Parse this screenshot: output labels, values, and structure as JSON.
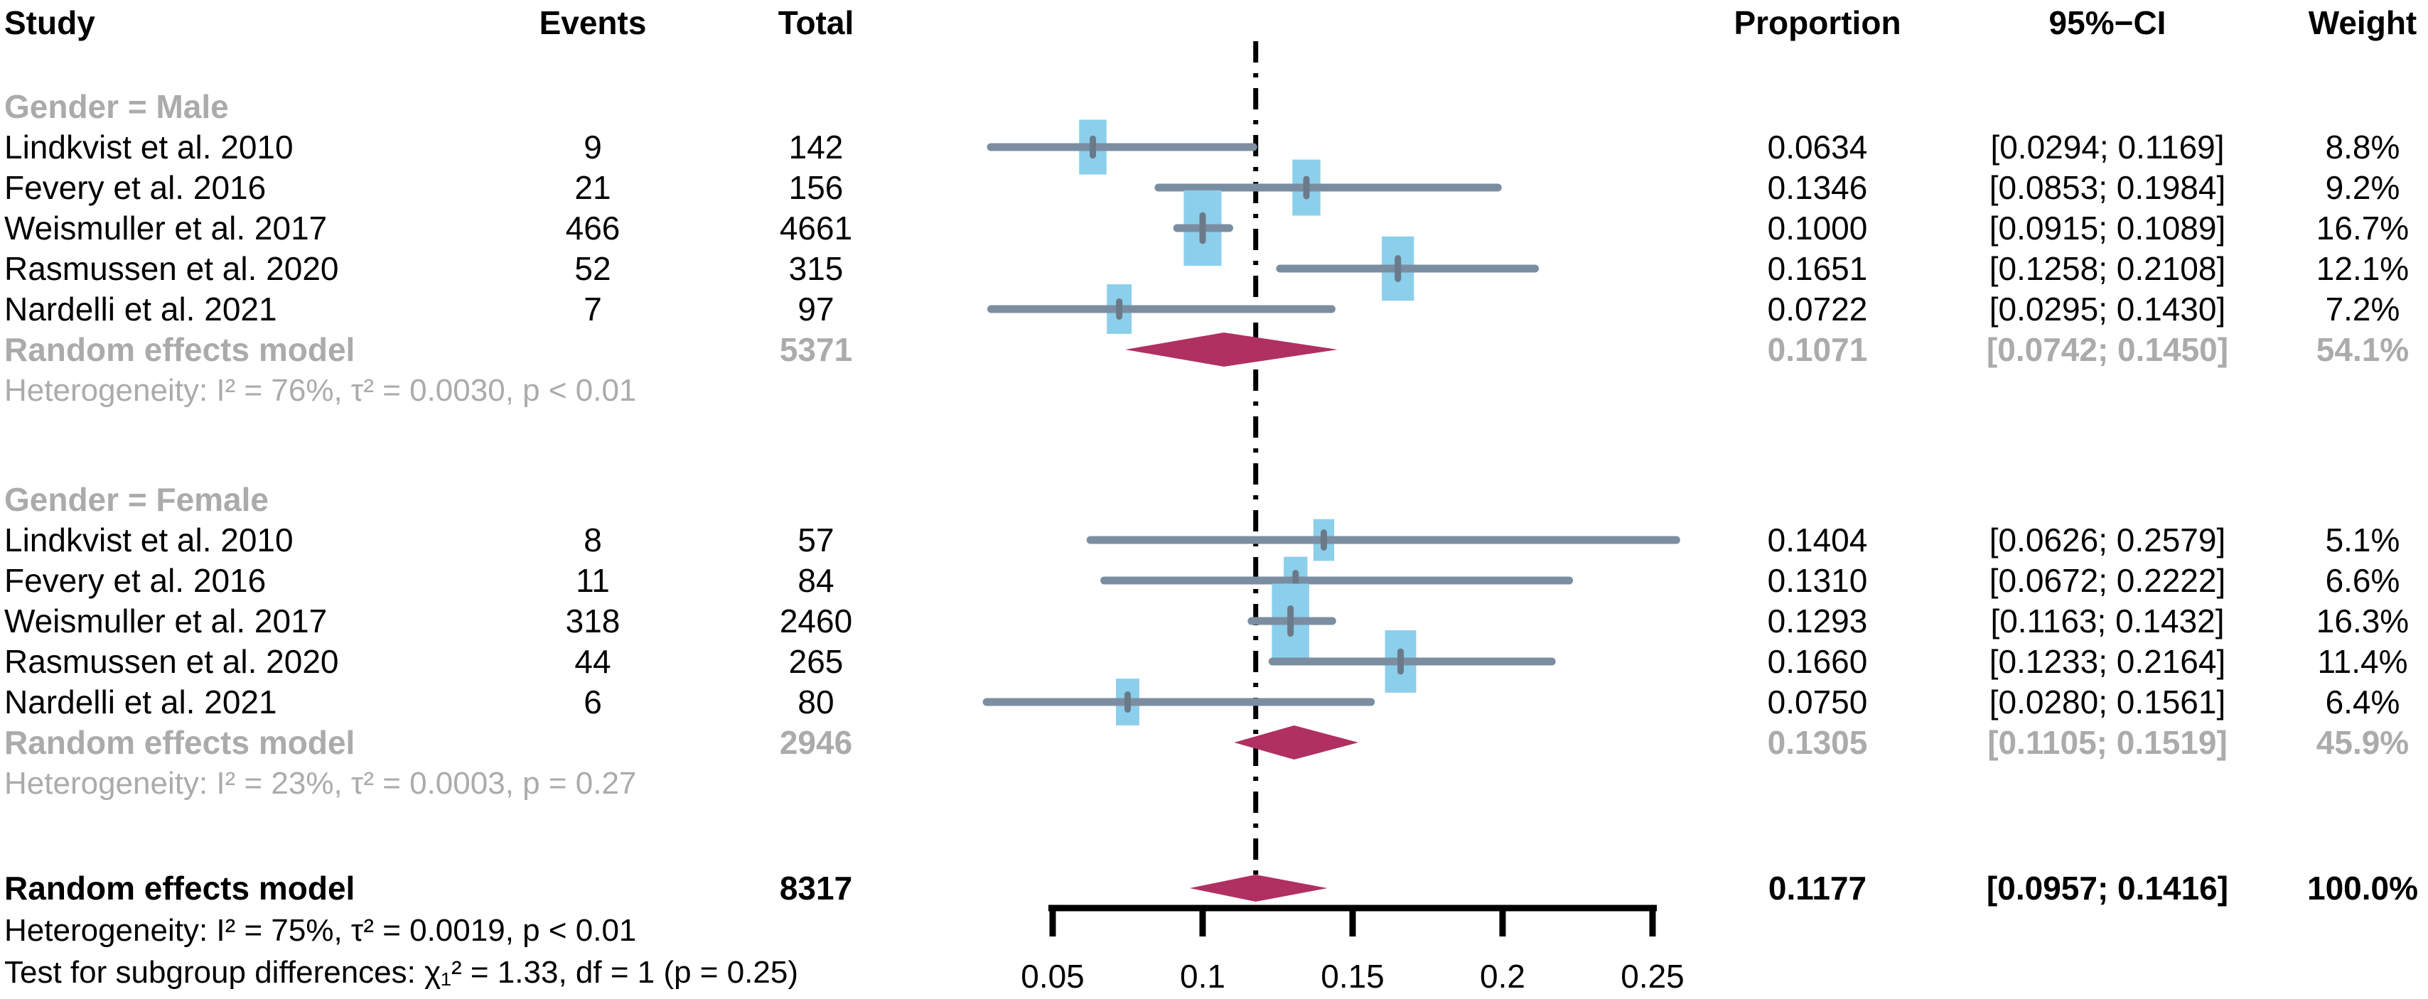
{
  "columns": {
    "study": "Study",
    "events": "Events",
    "total": "Total",
    "proportion": "Proportion",
    "ci": "95%−CI",
    "weight": "Weight"
  },
  "colors": {
    "square": "#8ccfeb",
    "ci_line": "#7b8ea1",
    "point_tick": "#6b7a89",
    "diamond": "#b03062",
    "reference_line": "#000000",
    "subdued_text": "#ababab",
    "text": "#000000"
  },
  "chart_data": {
    "type": "forest",
    "title": "",
    "xlabel": "",
    "x_axis": {
      "xlim": [
        0.05,
        0.25
      ],
      "ticks": [
        0.05,
        0.1,
        0.15,
        0.2,
        0.25
      ],
      "tick_labels": [
        "0.05",
        "0.1",
        "0.15",
        "0.2",
        "0.25"
      ],
      "reference_line": 0.1177
    },
    "groups": [
      {
        "label": "Gender = Male",
        "studies": [
          {
            "study": "Lindkvist et al. 2010",
            "events": "9",
            "total": "142",
            "proportion": 0.0634,
            "ci_low": 0.0294,
            "ci_high": 0.1169,
            "proportion_label": "0.0634",
            "ci_label": "[0.0294; 0.1169]",
            "weight": 8.8,
            "weight_label": "8.8%"
          },
          {
            "study": "Fevery et al. 2016",
            "events": "21",
            "total": "156",
            "proportion": 0.1346,
            "ci_low": 0.0853,
            "ci_high": 0.1984,
            "proportion_label": "0.1346",
            "ci_label": "[0.0853; 0.1984]",
            "weight": 9.2,
            "weight_label": "9.2%"
          },
          {
            "study": "Weismuller et al. 2017",
            "events": "466",
            "total": "4661",
            "proportion": 0.1,
            "ci_low": 0.0915,
            "ci_high": 0.1089,
            "proportion_label": "0.1000",
            "ci_label": "[0.0915; 0.1089]",
            "weight": 16.7,
            "weight_label": "16.7%"
          },
          {
            "study": "Rasmussen et al. 2020",
            "events": "52",
            "total": "315",
            "proportion": 0.1651,
            "ci_low": 0.1258,
            "ci_high": 0.2108,
            "proportion_label": "0.1651",
            "ci_label": "[0.1258; 0.2108]",
            "weight": 12.1,
            "weight_label": "12.1%"
          },
          {
            "study": "Nardelli et al. 2021",
            "events": "7",
            "total": "97",
            "proportion": 0.0722,
            "ci_low": 0.0295,
            "ci_high": 0.143,
            "proportion_label": "0.0722",
            "ci_label": "[0.0295; 0.1430]",
            "weight": 7.2,
            "weight_label": "7.2%"
          }
        ],
        "summary": {
          "label": "Random effects model",
          "total": "5371",
          "proportion": 0.1071,
          "ci_low": 0.0742,
          "ci_high": 0.145,
          "proportion_label": "0.1071",
          "ci_label": "[0.0742; 0.1450]",
          "weight_label": "54.1%"
        },
        "heterogeneity": "Heterogeneity: I² = 76%, τ² = 0.0030, p < 0.01"
      },
      {
        "label": "Gender = Female",
        "studies": [
          {
            "study": "Lindkvist et al. 2010",
            "events": "8",
            "total": "57",
            "proportion": 0.1404,
            "ci_low": 0.0626,
            "ci_high": 0.2579,
            "proportion_label": "0.1404",
            "ci_label": "[0.0626; 0.2579]",
            "weight": 5.1,
            "weight_label": "5.1%"
          },
          {
            "study": "Fevery et al. 2016",
            "events": "11",
            "total": "84",
            "proportion": 0.131,
            "ci_low": 0.0672,
            "ci_high": 0.2222,
            "proportion_label": "0.1310",
            "ci_label": "[0.0672; 0.2222]",
            "weight": 6.6,
            "weight_label": "6.6%"
          },
          {
            "study": "Weismuller et al. 2017",
            "events": "318",
            "total": "2460",
            "proportion": 0.1293,
            "ci_low": 0.1163,
            "ci_high": 0.1432,
            "proportion_label": "0.1293",
            "ci_label": "[0.1163; 0.1432]",
            "weight": 16.3,
            "weight_label": "16.3%"
          },
          {
            "study": "Rasmussen et al. 2020",
            "events": "44",
            "total": "265",
            "proportion": 0.166,
            "ci_low": 0.1233,
            "ci_high": 0.2164,
            "proportion_label": "0.1660",
            "ci_label": "[0.1233; 0.2164]",
            "weight": 11.4,
            "weight_label": "11.4%"
          },
          {
            "study": "Nardelli et al. 2021",
            "events": "6",
            "total": "80",
            "proportion": 0.075,
            "ci_low": 0.028,
            "ci_high": 0.1561,
            "proportion_label": "0.0750",
            "ci_label": "[0.0280; 0.1561]",
            "weight": 6.4,
            "weight_label": "6.4%"
          }
        ],
        "summary": {
          "label": "Random effects model",
          "total": "2946",
          "proportion": 0.1305,
          "ci_low": 0.1105,
          "ci_high": 0.1519,
          "proportion_label": "0.1305",
          "ci_label": "[0.1105; 0.1519]",
          "weight_label": "45.9%"
        },
        "heterogeneity": "Heterogeneity: I² = 23%, τ² = 0.0003, p = 0.27"
      }
    ],
    "overall": {
      "label": "Random effects model",
      "total": "8317",
      "proportion": 0.1177,
      "ci_low": 0.0957,
      "ci_high": 0.1416,
      "proportion_label": "0.1177",
      "ci_label": "[0.0957; 0.1416]",
      "weight_label": "100.0%"
    },
    "overall_heterogeneity": "Heterogeneity: I² = 75%, τ² = 0.0019, p < 0.01",
    "subgroup_test": "Test for subgroup differences: χ₁² = 1.33, df = 1 (p = 0.25)"
  }
}
